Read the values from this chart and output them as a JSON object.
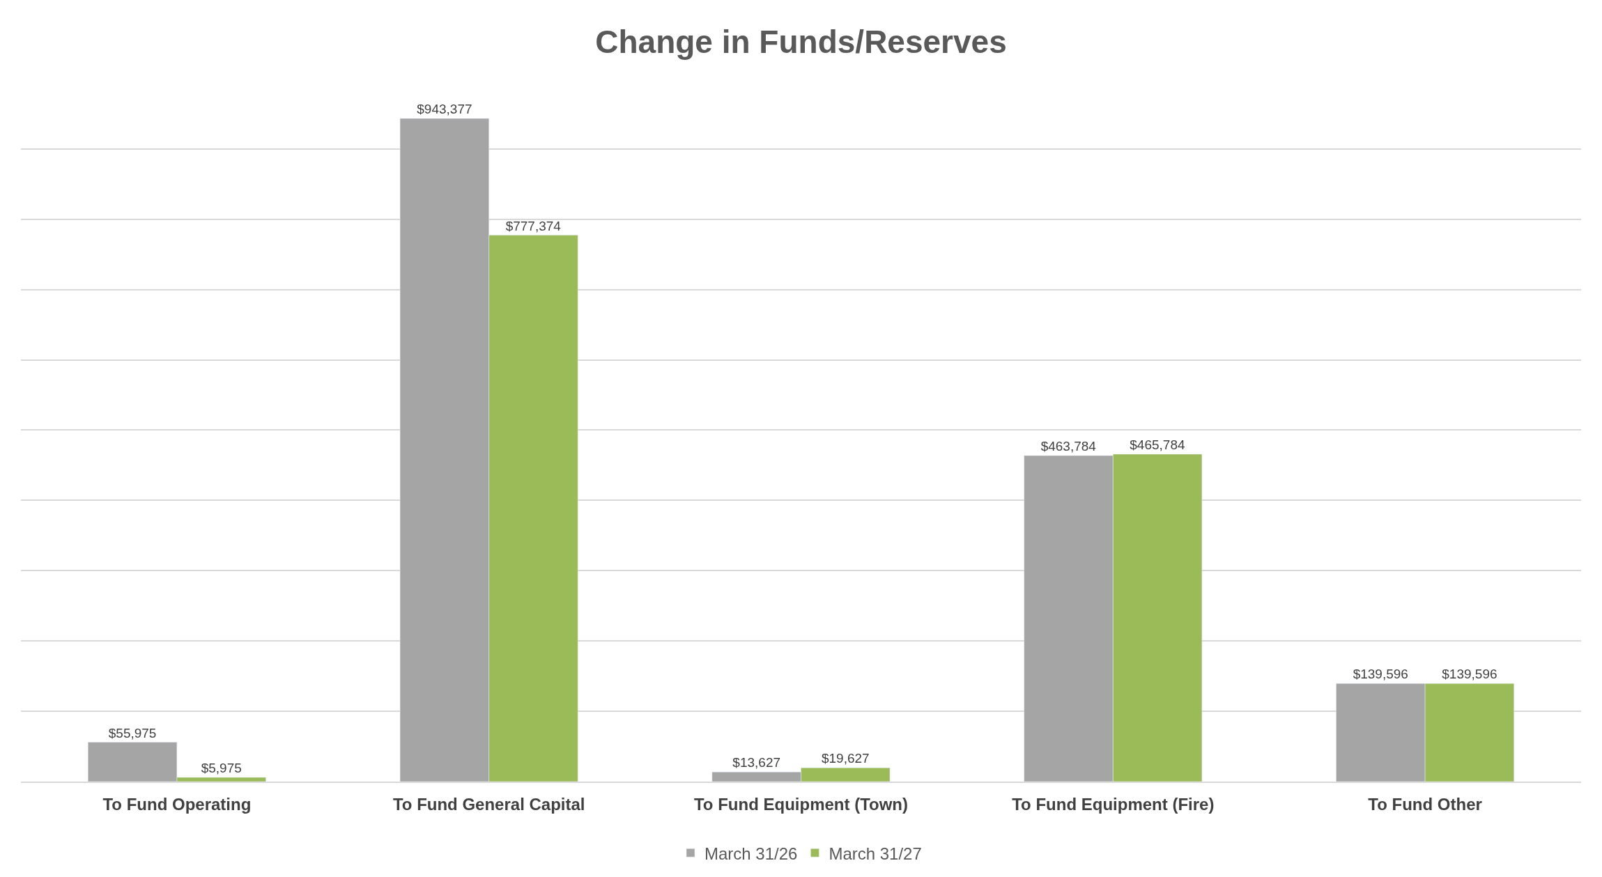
{
  "chart_data": {
    "type": "bar",
    "title": "Change in Funds/Reserves",
    "categories": [
      "To Fund Operating",
      "To Fund General Capital",
      "To Fund Equipment (Town)",
      "To Fund Equipment (Fire)",
      "To Fund Other"
    ],
    "series": [
      {
        "name": "March 31/26",
        "color": "#a5a5a5",
        "values": [
          55975,
          943377,
          13627,
          463784,
          139596
        ],
        "value_labels": [
          "$55,975",
          "$943,377",
          "$13,627",
          "$463,784",
          "$139,596"
        ]
      },
      {
        "name": "March 31/27",
        "color": "#9bbb59",
        "values": [
          5975,
          777374,
          19627,
          465784,
          139596
        ],
        "value_labels": [
          "$5,975",
          "$777,374",
          "$19,627",
          "$465,784",
          "$139,596"
        ]
      }
    ],
    "grid": "y",
    "legend": "bottom",
    "tick_labels": "x"
  }
}
